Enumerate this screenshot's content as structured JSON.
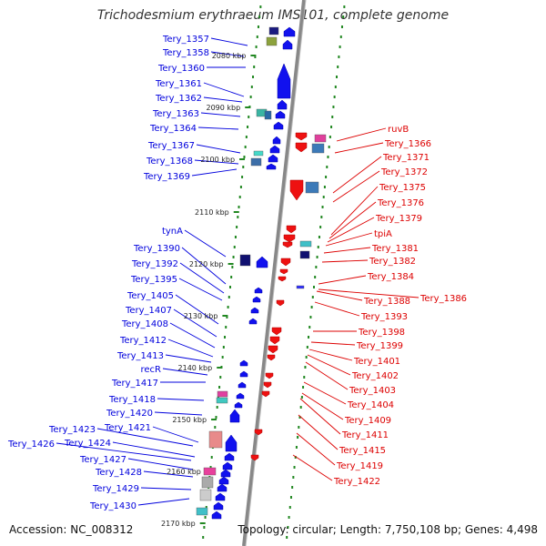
{
  "title": "Trichodesmium erythraeum IMS101, complete genome",
  "footer": {
    "accession": "Accession: NC_008312",
    "topology": "Topology: circular; Length: 7,750,108 bp; Genes: 4,498"
  },
  "colors": {
    "left_label": "#0000dd",
    "right_label": "#dd0000",
    "tick": "#228822",
    "backbone": "#888888"
  },
  "scale_labels": [
    "2080 kbp",
    "2090 kbp",
    "2100 kbp",
    "2110 kbp",
    "2120 kbp",
    "2130 kbp",
    "2140 kbp",
    "2150 kbp",
    "2160 kbp",
    "2170 kbp"
  ],
  "left_genes": [
    "Tery_1357",
    "Tery_1358",
    "Tery_1360",
    "Tery_1361",
    "Tery_1362",
    "Tery_1363",
    "Tery_1364",
    "Tery_1367",
    "Tery_1368",
    "Tery_1369",
    "tynA",
    "Tery_1390",
    "Tery_1392",
    "Tery_1395",
    "Tery_1405",
    "Tery_1407",
    "Tery_1408",
    "Tery_1412",
    "Tery_1413",
    "recR",
    "Tery_1417",
    "Tery_1418",
    "Tery_1420",
    "Tery_1421",
    "Tery_1423",
    "Tery_1424",
    "Tery_1426",
    "Tery_1427",
    "Tery_1428",
    "Tery_1429",
    "Tery_1430"
  ],
  "right_genes": [
    "ruvB",
    "Tery_1366",
    "Tery_1371",
    "Tery_1372",
    "Tery_1375",
    "Tery_1376",
    "Tery_1379",
    "tpiA",
    "Tery_1381",
    "Tery_1382",
    "Tery_1384",
    "Tery_1386",
    "Tery_1388",
    "Tery_1393",
    "Tery_1398",
    "Tery_1399",
    "Tery_1401",
    "Tery_1402",
    "Tery_1403",
    "Tery_1404",
    "Tery_1409",
    "Tery_1411",
    "Tery_1415",
    "Tery_1419",
    "Tery_1422"
  ]
}
